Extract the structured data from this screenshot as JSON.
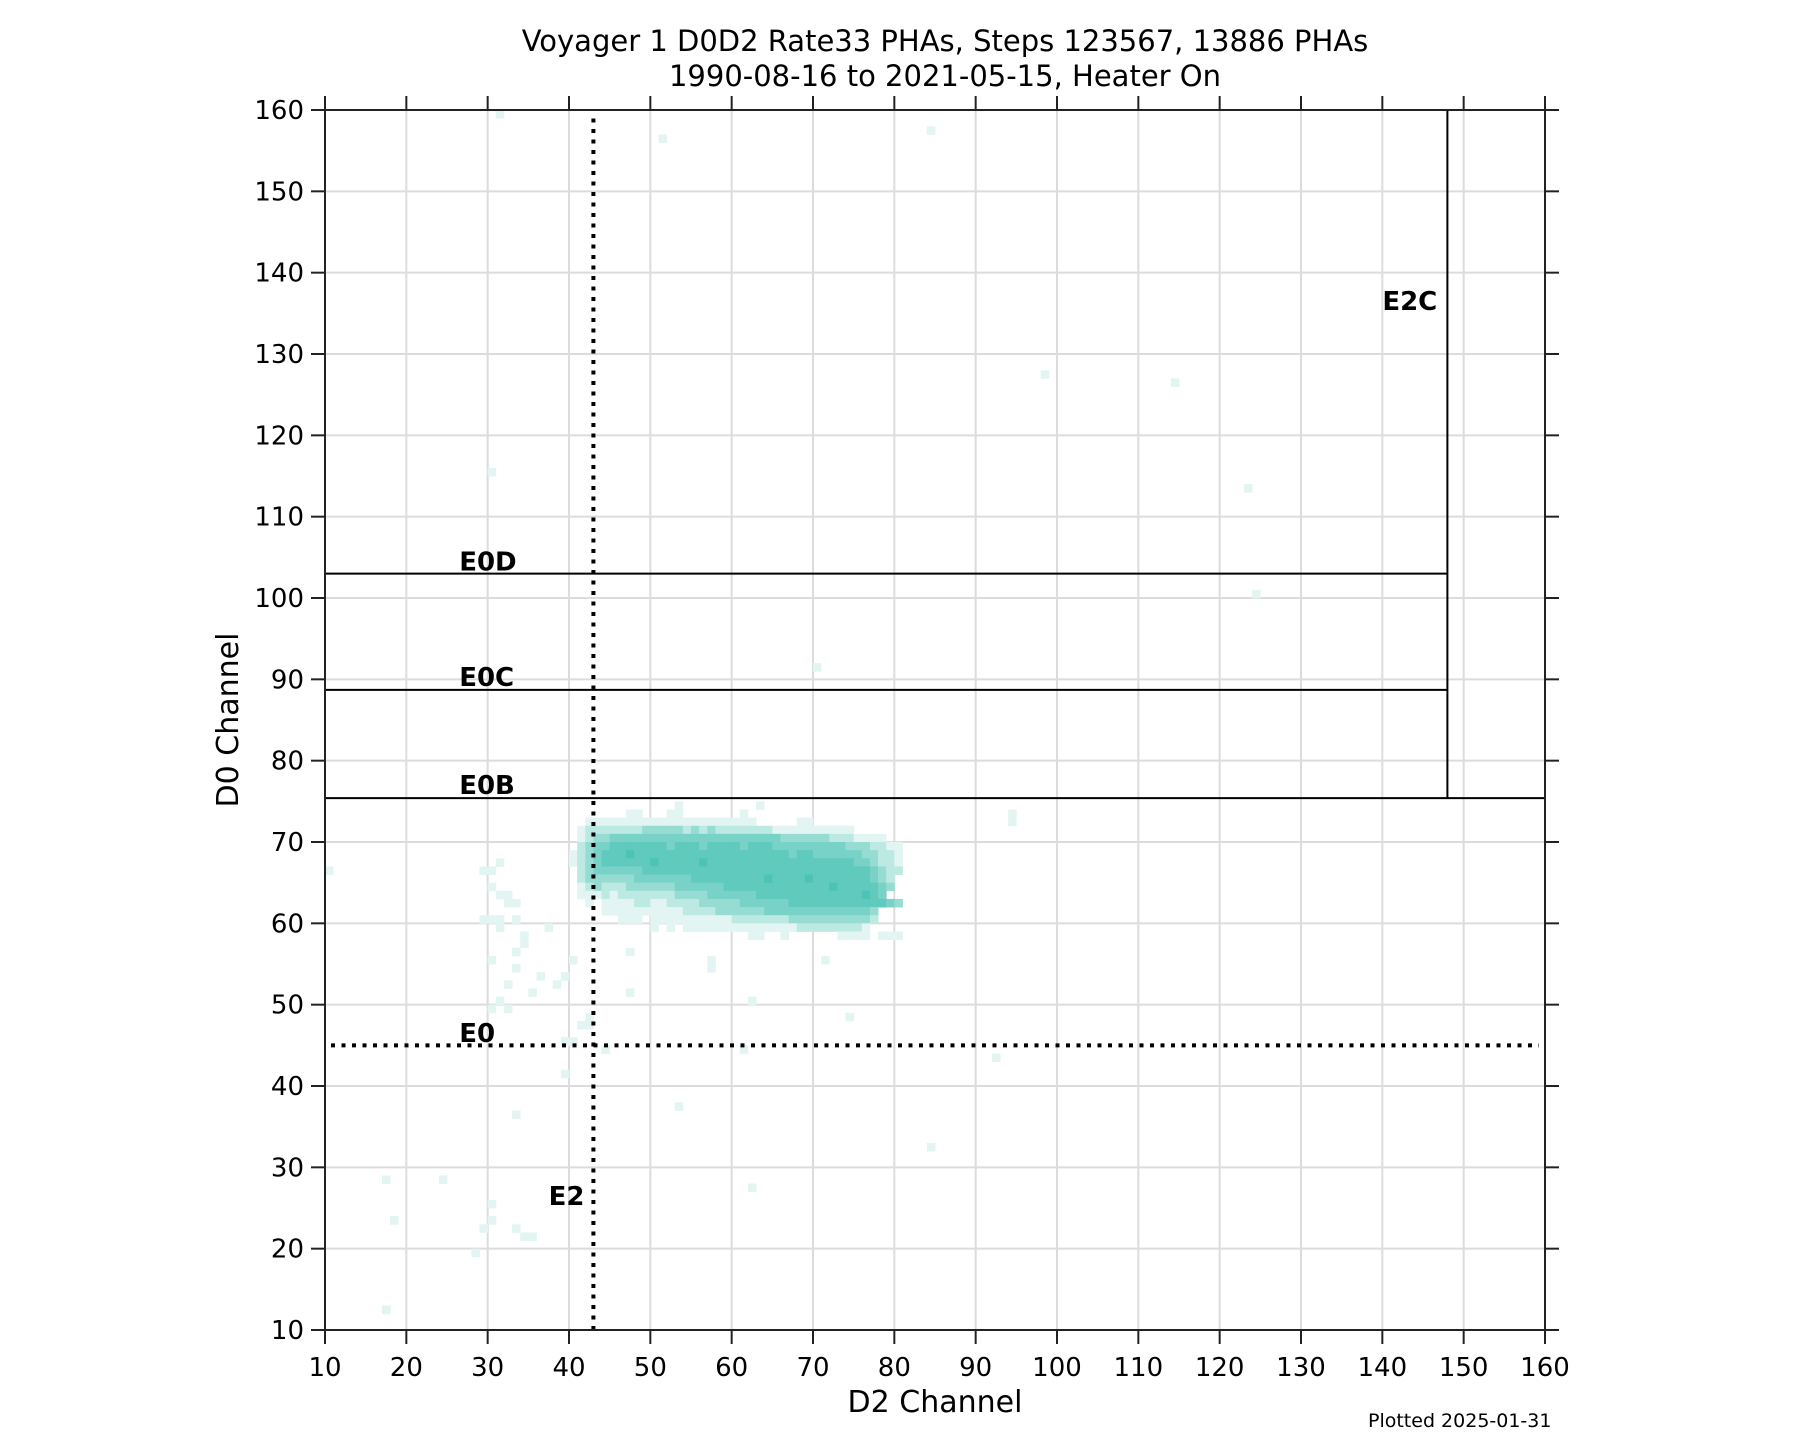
{
  "title": {
    "line1": "Voyager 1 D0D2 Rate33 PHAs, Steps 123567, 13886 PHAs",
    "line2": "1990-08-16 to 2021-05-15, Heater On"
  },
  "footnote": "Plotted 2025-01-31",
  "colors": {
    "grid": "#dcdcdc",
    "axis": "#222222",
    "levels": [
      "#ffffff",
      "#e2f5f2",
      "#bde9e3",
      "#97dcd3",
      "#79d2c7",
      "#5fcabd",
      "#4cc3b4"
    ]
  },
  "chart_data": {
    "type": "heatmap",
    "title": "Voyager 1 D0D2 Rate33 PHAs, Steps 123567, 13886 PHAs\n1990-08-16 to 2021-05-15, Heater On",
    "xlabel": "D2 Channel",
    "ylabel": "D0 Channel",
    "xlim": [
      10,
      160
    ],
    "ylim": [
      10,
      160
    ],
    "xticks": [
      10,
      20,
      30,
      40,
      50,
      60,
      70,
      80,
      90,
      100,
      110,
      120,
      130,
      140,
      150,
      160
    ],
    "yticks": [
      10,
      20,
      30,
      40,
      50,
      60,
      70,
      80,
      90,
      100,
      110,
      120,
      130,
      140,
      150,
      160
    ],
    "grid": true,
    "bin_size": 1,
    "cluster_rows": [
      {
        "d0": 73,
        "start": 47,
        "levels": "1100011000000010"
      },
      {
        "d0": 72,
        "start": 41,
        "levels": "01111111111111111111110000011"
      },
      {
        "d0": 71,
        "start": 41,
        "levels": "1222222233333232322222221111111111"
      },
      {
        "d0": 70,
        "start": 41,
        "levels": "12334444444444444444444443333332221111"
      },
      {
        "d0": 69,
        "start": 41,
        "levels": "2344555555545554555545554444444443332211"
      },
      {
        "d0": 68,
        "start": 40,
        "levels": "12345556555555555555555555545544444433221"
      },
      {
        "d0": 67,
        "start": 40,
        "levels": "12345555556555556555555555555555555443221"
      },
      {
        "d0": 66,
        "start": 41,
        "levels": "2344444455555555555555555555555555554322"
      },
      {
        "d0": 65,
        "start": 41,
        "levels": "233333344444445555555556555565555555432"
      },
      {
        "d0": 64,
        "start": 41,
        "levels": "123222333333444444555555555555565555543"
      },
      {
        "d0": 63,
        "start": 41,
        "levels": "11121222222233334444445555555555555654"
      },
      {
        "d0": 62,
        "start": 42,
        "levels": "101111221122223333344444455555555555543"
      },
      {
        "d0": 61,
        "start": 44,
        "levels": "1111111111222233333344444444444443"
      },
      {
        "d0": 60,
        "start": 45,
        "levels": "011101111111111222222233333333332"
      },
      {
        "d0": 59,
        "start": 47,
        "levels": "000101011111111111111222222221"
      },
      {
        "d0": 58,
        "start": 61,
        "levels": "01100100000011110111"
      }
    ],
    "sparse_points": [
      [
        31,
        159
      ],
      [
        51,
        156
      ],
      [
        84,
        157
      ],
      [
        98,
        127
      ],
      [
        114,
        126
      ],
      [
        123,
        113
      ],
      [
        30,
        115
      ],
      [
        124,
        100
      ],
      [
        70,
        91
      ],
      [
        94,
        73
      ],
      [
        94,
        72
      ],
      [
        53,
        74
      ],
      [
        63,
        74
      ],
      [
        10,
        66
      ],
      [
        29,
        66
      ],
      [
        30,
        66
      ],
      [
        31,
        67
      ],
      [
        30,
        64
      ],
      [
        31,
        63
      ],
      [
        32,
        63
      ],
      [
        32,
        62
      ],
      [
        33,
        62
      ],
      [
        29,
        60
      ],
      [
        30,
        60
      ],
      [
        31,
        60
      ],
      [
        33,
        60
      ],
      [
        37,
        59
      ],
      [
        31,
        59
      ],
      [
        34,
        58
      ],
      [
        33,
        56
      ],
      [
        34,
        57
      ],
      [
        30,
        55
      ],
      [
        33,
        54
      ],
      [
        32,
        52
      ],
      [
        36,
        53
      ],
      [
        38,
        52
      ],
      [
        39,
        53
      ],
      [
        40,
        55
      ],
      [
        31,
        50
      ],
      [
        35,
        51
      ],
      [
        30,
        49
      ],
      [
        32,
        49
      ],
      [
        47,
        56
      ],
      [
        47,
        51
      ],
      [
        57,
        55
      ],
      [
        57,
        54
      ],
      [
        62,
        50
      ],
      [
        71,
        55
      ],
      [
        74,
        48
      ],
      [
        41,
        47
      ],
      [
        42,
        47
      ],
      [
        39,
        45
      ],
      [
        40,
        45
      ],
      [
        44,
        44
      ],
      [
        61,
        44
      ],
      [
        92,
        43
      ],
      [
        39,
        41
      ],
      [
        33,
        36
      ],
      [
        53,
        37
      ],
      [
        84,
        32
      ],
      [
        17,
        28
      ],
      [
        24,
        28
      ],
      [
        62,
        27
      ],
      [
        18,
        23
      ],
      [
        30,
        25
      ],
      [
        30,
        23
      ],
      [
        29,
        22
      ],
      [
        33,
        22
      ],
      [
        34,
        21
      ],
      [
        35,
        21
      ],
      [
        28,
        19
      ],
      [
        17,
        12
      ],
      [
        42,
        48
      ]
    ],
    "sparse_level": 1,
    "boundaries": [
      {
        "name": "E0D",
        "orientation": "horizontal",
        "value": 103,
        "from": 10,
        "to": 148,
        "style": "solid",
        "label_x": 26.5,
        "label_y": 104.5
      },
      {
        "name": "E0C",
        "orientation": "horizontal",
        "value": 88.7,
        "from": 10,
        "to": 148,
        "style": "solid",
        "label_x": 26.5,
        "label_y": 90.3
      },
      {
        "name": "E0B",
        "orientation": "horizontal",
        "value": 75.4,
        "from": 10,
        "to": 160,
        "style": "solid",
        "label_x": 26.5,
        "label_y": 77
      },
      {
        "name": "E2C",
        "orientation": "vertical",
        "value": 148,
        "from": 75.4,
        "to": 160,
        "style": "solid",
        "label_x": 140,
        "label_y": 136.5
      },
      {
        "name": "E0",
        "orientation": "horizontal",
        "value": 45,
        "from": 10,
        "to": 160,
        "style": "dotted",
        "label_x": 26.5,
        "label_y": 46.5
      },
      {
        "name": "E2",
        "orientation": "vertical",
        "value": 43,
        "from": 10,
        "to": 159.5,
        "style": "dotted",
        "label_x": 37.5,
        "label_y": 26.5
      }
    ]
  }
}
